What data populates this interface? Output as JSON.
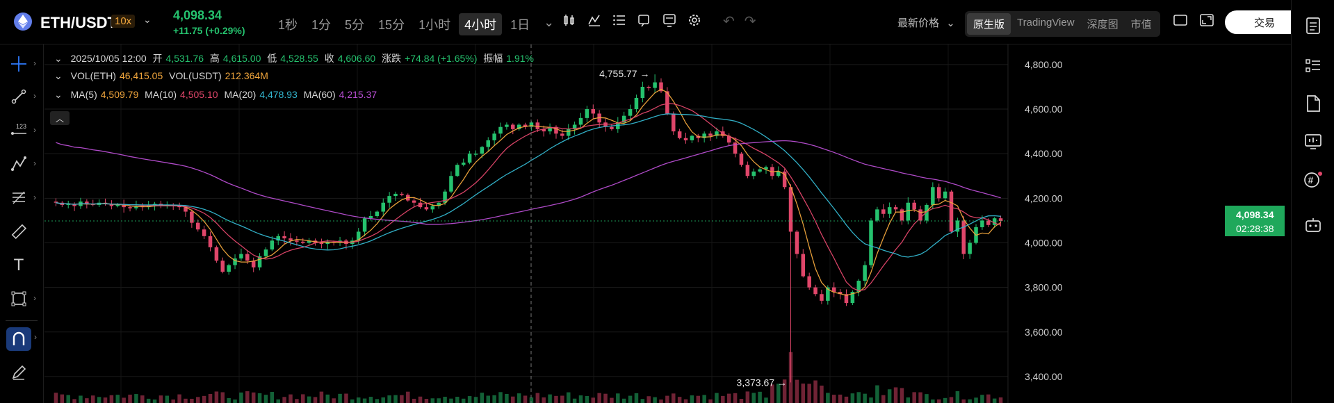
{
  "header": {
    "pair": "ETH/USDT",
    "leverage": "10x",
    "last_price": "4,098.34",
    "change": "+11.75 (+0.29%)",
    "intervals": [
      "1秒",
      "1分",
      "5分",
      "15分",
      "1小时",
      "4小时",
      "1日"
    ],
    "active_interval": "4小时",
    "price_type": "最新价格",
    "views": [
      "原生版",
      "TradingView",
      "深度图",
      "市值"
    ],
    "active_view": "原生版",
    "trade_label": "交易"
  },
  "legend": {
    "datetime": "2025/10/05 12:00",
    "open_label": "开",
    "open": "4,531.76",
    "high_label": "高",
    "high": "4,615.00",
    "low_label": "低",
    "low": "4,528.55",
    "close_label": "收",
    "close": "4,606.60",
    "chg_label": "涨跌",
    "chg": "+74.84 (+1.65%)",
    "amp_label": "振幅",
    "amp": "1.91%",
    "vol_eth_label": "VOL(ETH)",
    "vol_eth": "46,415.05",
    "vol_usdt_label": "VOL(USDT)",
    "vol_usdt": "212.364M",
    "ma5_label": "MA(5)",
    "ma5": "4,509.79",
    "ma10_label": "MA(10)",
    "ma10": "4,505.10",
    "ma20_label": "MA(20)",
    "ma20": "4,478.93",
    "ma60_label": "MA(60)",
    "ma60": "4,215.37"
  },
  "price_tag": {
    "price": "4,098.34",
    "countdown": "02:28:38"
  },
  "colors": {
    "up": "#25c26e",
    "down": "#e0466a",
    "ma5": "#f0a53c",
    "ma10": "#e0466a",
    "ma20": "#34b7d0",
    "ma60": "#b84ed3"
  },
  "chart_data": {
    "type": "candlestick",
    "y_ticks": [
      "4,800.00",
      "4,600.00",
      "4,400.00",
      "4,200.00",
      "4,000.00",
      "3,800.00",
      "3,600.00",
      "3,400.00"
    ],
    "ylim": [
      3300,
      4890
    ],
    "high_annotation": "4,755.77",
    "low_annotation": "3,373.67",
    "closes": [
      4180,
      4170,
      4175,
      4165,
      4185,
      4175,
      4170,
      4180,
      4175,
      4165,
      4170,
      4160,
      4155,
      4165,
      4160,
      4170,
      4175,
      4165,
      4170,
      4168,
      4160,
      4140,
      4090,
      4060,
      4030,
      3980,
      3920,
      3870,
      3900,
      3930,
      3950,
      3920,
      3890,
      3940,
      3970,
      4010,
      4030,
      4020,
      4010,
      4005,
      4000,
      4010,
      4000,
      3995,
      4005,
      4000,
      4010,
      3995,
      4010,
      4050,
      4110,
      4120,
      4140,
      4180,
      4210,
      4220,
      4215,
      4190,
      4180,
      4160,
      4150,
      4165,
      4180,
      4230,
      4300,
      4350,
      4360,
      4400,
      4400,
      4430,
      4460,
      4490,
      4520,
      4530,
      4510,
      4530,
      4520,
      4540,
      4510,
      4500,
      4520,
      4490,
      4480,
      4510,
      4530,
      4560,
      4600,
      4580,
      4540,
      4520,
      4510,
      4540,
      4570,
      4600,
      4650,
      4700,
      4695,
      4720,
      4680,
      4580,
      4500,
      4470,
      4460,
      4480,
      4470,
      4490,
      4480,
      4500,
      4480,
      4450,
      4400,
      4350,
      4300,
      4320,
      4330,
      4340,
      4300,
      4320,
      4250,
      4050,
      3950,
      3850,
      3800,
      3770,
      3740,
      3800,
      3780,
      3770,
      3730,
      3780,
      3830,
      3900,
      4100,
      4150,
      4130,
      4160,
      4150,
      4100,
      4180,
      4150,
      4100,
      4170,
      4250,
      4200,
      4230,
      4050,
      4100,
      3950,
      4000,
      4070,
      4100,
      4080,
      4110,
      4098
    ]
  }
}
